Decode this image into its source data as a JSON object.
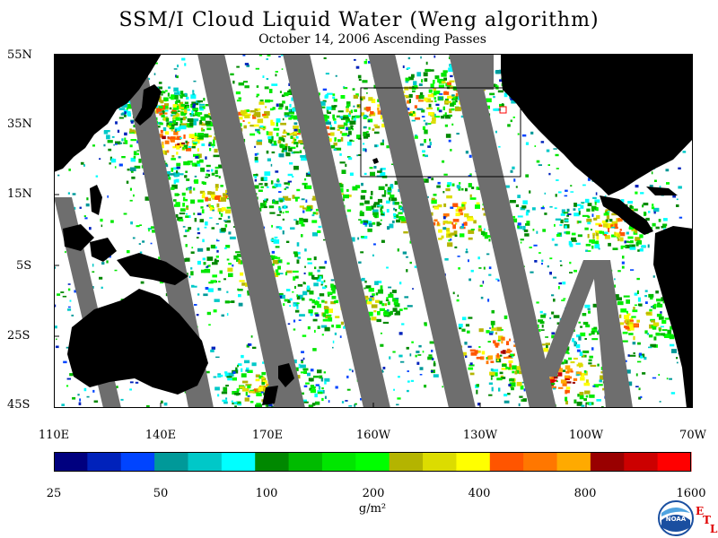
{
  "title": "SSM/I Cloud Liquid Water (Weng algorithm)",
  "subtitle": "October 14, 2006  Ascending Passes",
  "lat_labels": [
    "55N",
    "35N",
    "15N",
    "5S",
    "25S",
    "45S"
  ],
  "lon_labels": [
    "110E",
    "140E",
    "170E",
    "160W",
    "130W",
    "100W",
    "70W"
  ],
  "colorbar": {
    "colors": [
      "#00007f",
      "#0022bb",
      "#0044ff",
      "#009999",
      "#00c8c8",
      "#00ffff",
      "#008800",
      "#00bb00",
      "#00e600",
      "#00ff00",
      "#b4b400",
      "#dcdc00",
      "#ffff00",
      "#ff5500",
      "#ff7700",
      "#ffaa00",
      "#990000",
      "#cc0000",
      "#ff0000"
    ],
    "tick_labels": [
      "25",
      "50",
      "100",
      "200",
      "400",
      "800",
      "1600"
    ],
    "units": "g/m²"
  },
  "logo": {
    "text": "NOAA",
    "letters": [
      "E",
      "T",
      "L"
    ]
  },
  "colors": {
    "land": "#000000",
    "swath_gap": "#6e6e6e",
    "ocean_no_cloud": "#ffffff"
  }
}
